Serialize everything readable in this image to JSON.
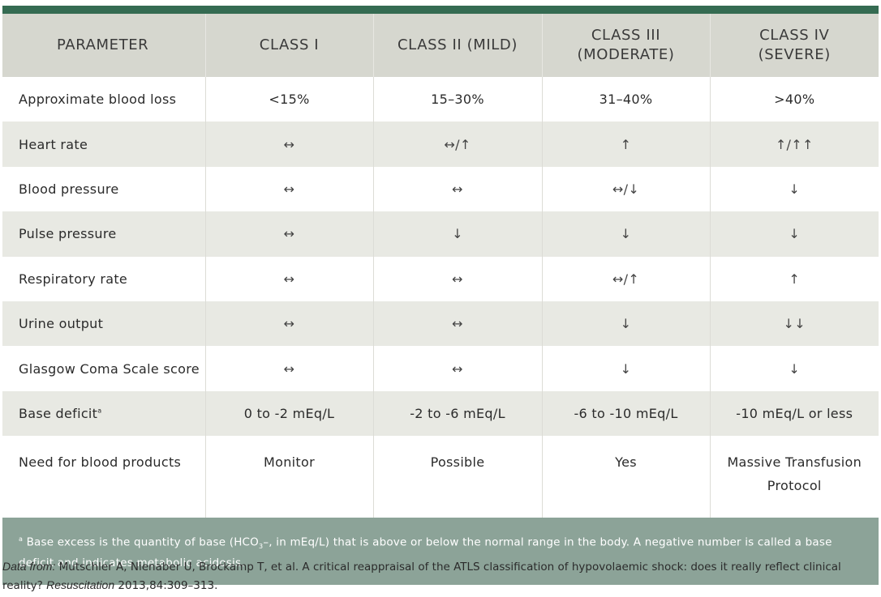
{
  "table": {
    "headers": [
      "PARAMETER",
      "CLASS I",
      "CLASS II (MILD)",
      "CLASS III\n(MODERATE)",
      "CLASS IV\n(SEVERE)"
    ],
    "rows": [
      {
        "label": "Approximate blood loss",
        "c1": "<15%",
        "c2": "15–30%",
        "c3": "31–40%",
        "c4": ">40%"
      },
      {
        "label": "Heart rate",
        "c1": "↔",
        "c2": "↔/↑",
        "c3": "↑",
        "c4": "↑/↑↑"
      },
      {
        "label": "Blood pressure",
        "c1": "↔",
        "c2": "↔",
        "c3": "↔/↓",
        "c4": "↓"
      },
      {
        "label": "Pulse pressure",
        "c1": "↔",
        "c2": "↓",
        "c3": "↓",
        "c4": "↓"
      },
      {
        "label": "Respiratory rate",
        "c1": "↔",
        "c2": "↔",
        "c3": "↔/↑",
        "c4": "↑"
      },
      {
        "label": "Urine output",
        "c1": "↔",
        "c2": "↔",
        "c3": "↓",
        "c4": "↓↓"
      },
      {
        "label": "Glasgow Coma Scale score",
        "c1": "↔",
        "c2": "↔",
        "c3": "↓",
        "c4": "↓"
      },
      {
        "label": "Base deficit",
        "label_sup": "a",
        "c1": "0 to -2 mEq/L",
        "c2": "-2 to -6 mEq/L",
        "c3": "-6 to -10 mEq/L",
        "c4": "-10 mEq/L or less"
      },
      {
        "label": "Need for blood products",
        "c1": "Monitor",
        "c2": "Possible",
        "c3": "Yes",
        "c4": "Massive Transfusion Protocol"
      }
    ]
  },
  "footnote": {
    "marker": "a",
    "text_before": " Base excess is the quantity of base (HCO",
    "subscript": "3",
    "text_after": "–, in mEq/L) that is above or below the normal range in the body. A negative number is called a base deficit and indicates metabolic acidosis."
  },
  "citation": {
    "prefix": "Data from:",
    "authors_title": " Mutschler A, Nienaber U, Brockamp T, et al. A critical reappraisal of the ATLS classification of hypovolaemic shock: does it really reflect clinical reality? ",
    "journal": "Resuscitation",
    "details": " 2013,84:309–313."
  },
  "colors": {
    "top_bar": "#356b52",
    "header_bg": "#d6d7cf",
    "stripe_bg": "#e8e9e3",
    "footnote_bg": "#8ca398"
  }
}
